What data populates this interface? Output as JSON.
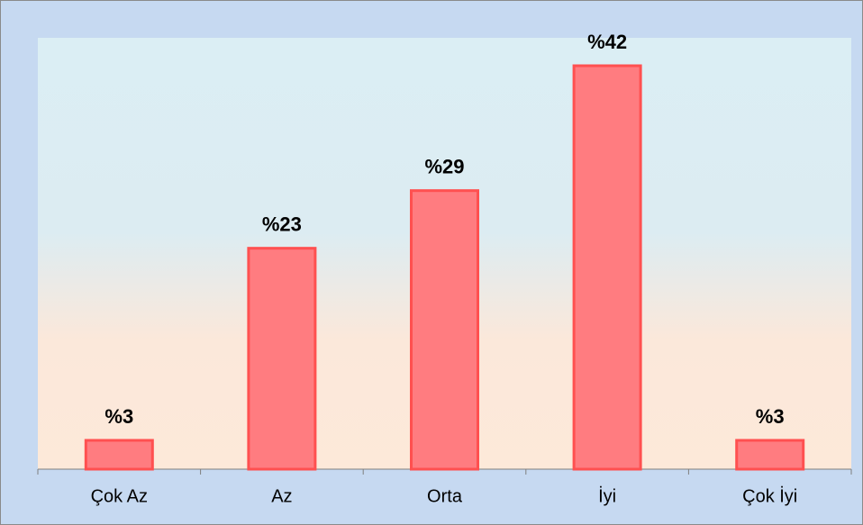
{
  "chart_data": {
    "type": "bar",
    "categories": [
      "Çok Az",
      "Az",
      "Orta",
      "İyi",
      "Çok İyi"
    ],
    "values": [
      3,
      23,
      29,
      42,
      3
    ],
    "value_labels": [
      "%3",
      "%23",
      "%29",
      "%42",
      "%3"
    ],
    "color": "#ff7c80"
  }
}
